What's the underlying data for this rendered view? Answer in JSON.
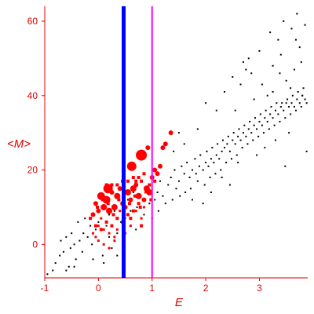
{
  "chart_data": {
    "type": "scatter",
    "title": "",
    "xlabel": "E",
    "ylabel": "<M>",
    "xlim": [
      -1,
      3.9
    ],
    "ylim": [
      -9,
      64
    ],
    "x_ticks": [
      -1,
      0,
      1,
      2,
      3
    ],
    "y_ticks": [
      0,
      20,
      40,
      60
    ],
    "grid": false,
    "legend": "none",
    "colors": {
      "axis": "#e00000",
      "black_points": "#000000",
      "red_points": "#ff0000",
      "blue_line": "#0000ff",
      "magenta_line": "#ff00ff"
    },
    "vertical_lines": [
      {
        "x": 0.47,
        "color": "#0000ff"
      },
      {
        "x": 1.0,
        "color": "#ff00ff"
      }
    ],
    "series": [
      {
        "color": "#000000",
        "points": [
          [
            -0.95,
            -8
          ],
          [
            -0.85,
            -7
          ],
          [
            -0.8,
            -5
          ],
          [
            -0.72,
            -3
          ],
          [
            -0.65,
            -2
          ],
          [
            -0.6,
            -7
          ],
          [
            -0.55,
            -6
          ],
          [
            -0.52,
            -1
          ],
          [
            -0.45,
            0
          ],
          [
            -0.42,
            -4
          ],
          [
            -0.35,
            1
          ],
          [
            -0.3,
            -2
          ],
          [
            -0.28,
            3
          ],
          [
            -0.2,
            2
          ],
          [
            -0.15,
            5
          ],
          [
            -0.12,
            0
          ],
          [
            -0.05,
            4
          ],
          [
            0.0,
            6
          ],
          [
            0.05,
            7
          ],
          [
            0.08,
            -3
          ],
          [
            0.15,
            5
          ],
          [
            0.2,
            8
          ],
          [
            0.25,
            -1
          ],
          [
            0.3,
            9
          ],
          [
            0.35,
            3
          ],
          [
            0.42,
            6
          ],
          [
            -0.6,
            2
          ],
          [
            -0.5,
            3
          ],
          [
            -0.38,
            6
          ],
          [
            -0.25,
            7
          ],
          [
            -0.1,
            -4
          ],
          [
            0.1,
            -5
          ],
          [
            0.2,
            2
          ],
          [
            0.35,
            -3
          ],
          [
            -0.7,
            1
          ],
          [
            -0.45,
            -6
          ],
          [
            0.5,
            7
          ],
          [
            0.55,
            12
          ],
          [
            0.6,
            9
          ],
          [
            0.65,
            14
          ],
          [
            0.7,
            4
          ],
          [
            0.72,
            10
          ],
          [
            0.78,
            13
          ],
          [
            0.85,
            8
          ],
          [
            0.9,
            15
          ],
          [
            0.95,
            11
          ],
          [
            1.0,
            7
          ],
          [
            1.05,
            12
          ],
          [
            1.1,
            14
          ],
          [
            1.12,
            9
          ],
          [
            1.15,
            17
          ],
          [
            1.2,
            13
          ],
          [
            1.25,
            11
          ],
          [
            1.3,
            16
          ],
          [
            1.35,
            18
          ],
          [
            1.38,
            12
          ],
          [
            1.42,
            20
          ],
          [
            1.45,
            15
          ],
          [
            1.5,
            17
          ],
          [
            1.52,
            13
          ],
          [
            1.55,
            21
          ],
          [
            1.6,
            19
          ],
          [
            1.62,
            14
          ],
          [
            1.65,
            22
          ],
          [
            1.7,
            18
          ],
          [
            1.72,
            15
          ],
          [
            1.75,
            20
          ],
          [
            1.8,
            23
          ],
          [
            1.82,
            19
          ],
          [
            1.85,
            17
          ],
          [
            1.88,
            21
          ],
          [
            1.9,
            24
          ],
          [
            1.95,
            20
          ],
          [
            1.98,
            16
          ],
          [
            2.0,
            22
          ],
          [
            2.02,
            25
          ],
          [
            2.05,
            21
          ],
          [
            2.08,
            18
          ],
          [
            2.1,
            23
          ],
          [
            2.12,
            26
          ],
          [
            2.15,
            22
          ],
          [
            2.18,
            19
          ],
          [
            2.2,
            24
          ],
          [
            2.22,
            27
          ],
          [
            2.25,
            23
          ],
          [
            2.28,
            20
          ],
          [
            2.3,
            25
          ],
          [
            2.32,
            28
          ],
          [
            2.35,
            26
          ],
          [
            2.38,
            22
          ],
          [
            2.4,
            27
          ],
          [
            2.42,
            29
          ],
          [
            2.45,
            25
          ],
          [
            2.48,
            23
          ],
          [
            2.5,
            28
          ],
          [
            2.52,
            30
          ],
          [
            2.55,
            27
          ],
          [
            2.58,
            24
          ],
          [
            2.6,
            29
          ],
          [
            2.62,
            31
          ],
          [
            2.65,
            28
          ],
          [
            2.68,
            26
          ],
          [
            2.7,
            30
          ],
          [
            2.72,
            32
          ],
          [
            2.75,
            29
          ],
          [
            2.78,
            27
          ],
          [
            2.8,
            31
          ],
          [
            2.82,
            33
          ],
          [
            2.85,
            30
          ],
          [
            2.88,
            28
          ],
          [
            2.9,
            32
          ],
          [
            2.92,
            34
          ],
          [
            2.95,
            31
          ],
          [
            2.98,
            29
          ],
          [
            3.0,
            33
          ],
          [
            3.02,
            35
          ],
          [
            3.05,
            32
          ],
          [
            3.08,
            30
          ],
          [
            3.1,
            34
          ],
          [
            3.12,
            36
          ],
          [
            3.15,
            33
          ],
          [
            3.18,
            31
          ],
          [
            3.2,
            35
          ],
          [
            3.22,
            37
          ],
          [
            3.25,
            34
          ],
          [
            3.28,
            32
          ],
          [
            3.3,
            36
          ],
          [
            3.32,
            38
          ],
          [
            3.35,
            35
          ],
          [
            3.38,
            33
          ],
          [
            3.4,
            37
          ],
          [
            3.42,
            38
          ],
          [
            3.45,
            36
          ],
          [
            3.48,
            34
          ],
          [
            3.5,
            38
          ],
          [
            3.52,
            39
          ],
          [
            3.55,
            37
          ],
          [
            3.58,
            35
          ],
          [
            3.6,
            38
          ],
          [
            3.62,
            40
          ],
          [
            3.65,
            37
          ],
          [
            3.68,
            36
          ],
          [
            3.7,
            39
          ],
          [
            3.72,
            41
          ],
          [
            3.75,
            38
          ],
          [
            3.78,
            37
          ],
          [
            3.8,
            40
          ],
          [
            3.82,
            42
          ],
          [
            3.85,
            39
          ],
          [
            3.88,
            38
          ],
          [
            1.4,
            25
          ],
          [
            1.6,
            27
          ],
          [
            1.75,
            12
          ],
          [
            1.95,
            11
          ],
          [
            2.1,
            14
          ],
          [
            2.3,
            18
          ],
          [
            2.45,
            16
          ],
          [
            2.5,
            45
          ],
          [
            2.6,
            22
          ],
          [
            2.7,
            49
          ],
          [
            2.8,
            50
          ],
          [
            2.85,
            46
          ],
          [
            2.95,
            24
          ],
          [
            3.0,
            52
          ],
          [
            3.05,
            43
          ],
          [
            3.1,
            26
          ],
          [
            3.2,
            57
          ],
          [
            3.25,
            41
          ],
          [
            3.3,
            28
          ],
          [
            3.35,
            55
          ],
          [
            3.4,
            51
          ],
          [
            3.45,
            60
          ],
          [
            3.5,
            44
          ],
          [
            3.55,
            30
          ],
          [
            3.6,
            58
          ],
          [
            3.65,
            47
          ],
          [
            3.7,
            62
          ],
          [
            3.75,
            53
          ],
          [
            3.8,
            40
          ],
          [
            3.85,
            59
          ],
          [
            3.88,
            25
          ],
          [
            3.78,
            49
          ],
          [
            3.68,
            55
          ],
          [
            3.58,
            42
          ],
          [
            3.48,
            21
          ],
          [
            3.38,
            46
          ],
          [
            2.9,
            39
          ],
          [
            2.65,
            43
          ],
          [
            2.55,
            36
          ],
          [
            2.35,
            41
          ],
          [
            2.2,
            36
          ],
          [
            2.0,
            38
          ],
          [
            1.85,
            31
          ],
          [
            1.5,
            30
          ],
          [
            2.75,
            47
          ],
          [
            3.15,
            40
          ],
          [
            3.25,
            48
          ]
        ]
      },
      {
        "color": "#ff0000",
        "points": [
          [
            0.8,
            24
          ],
          [
            0.62,
            21
          ],
          [
            0.18,
            15
          ],
          [
            0.15,
            12
          ],
          [
            0.05,
            13
          ],
          [
            0.3,
            10
          ],
          [
            0.35,
            13
          ],
          [
            0.2,
            9
          ],
          [
            0.1,
            10
          ],
          [
            0.55,
            14
          ],
          [
            0.65,
            15
          ],
          [
            0.75,
            13
          ],
          [
            0.9,
            15
          ],
          [
            0.95,
            14
          ],
          [
            -0.05,
            11
          ],
          [
            -0.1,
            8
          ],
          [
            0.0,
            9
          ],
          [
            0.25,
            14
          ],
          [
            0.4,
            15
          ],
          [
            0.45,
            11
          ],
          [
            0.5,
            10
          ],
          [
            0.6,
            12
          ],
          [
            0.7,
            16
          ],
          [
            0.85,
            12
          ],
          [
            1.0,
            18
          ],
          [
            1.05,
            20
          ],
          [
            1.1,
            19
          ],
          [
            1.15,
            21
          ],
          [
            1.2,
            26
          ],
          [
            1.25,
            27
          ],
          [
            1.35,
            30
          ],
          [
            0.92,
            26
          ],
          [
            0.7,
            17
          ],
          [
            0.8,
            17
          ],
          [
            0.75,
            11
          ],
          [
            0.65,
            9
          ],
          [
            0.55,
            8
          ],
          [
            0.45,
            6
          ],
          [
            0.35,
            7
          ],
          [
            0.25,
            5
          ],
          [
            0.15,
            6
          ],
          [
            0.05,
            4
          ],
          [
            -0.05,
            5
          ],
          [
            -0.15,
            7
          ],
          [
            -0.1,
            3
          ],
          [
            0.0,
            1
          ],
          [
            0.1,
            0
          ],
          [
            0.2,
            -1
          ],
          [
            0.3,
            1
          ],
          [
            0.35,
            4
          ],
          [
            0.4,
            9
          ],
          [
            0.3,
            2
          ],
          [
            0.2,
            3
          ],
          [
            0.1,
            4
          ],
          [
            0.0,
            5
          ],
          [
            0.05,
            7
          ],
          [
            -0.05,
            2
          ],
          [
            0.5,
            3
          ],
          [
            0.6,
            5
          ],
          [
            0.7,
            9
          ],
          [
            0.8,
            7
          ],
          [
            0.85,
            10
          ],
          [
            0.88,
            14
          ],
          [
            0.78,
            10
          ],
          [
            0.68,
            13
          ],
          [
            0.58,
            11
          ],
          [
            0.48,
            14
          ],
          [
            0.38,
            12
          ],
          [
            0.28,
            8
          ],
          [
            0.18,
            11
          ],
          [
            0.08,
            12
          ],
          [
            -0.02,
            10
          ],
          [
            0.15,
            16
          ],
          [
            0.25,
            16
          ],
          [
            0.35,
            16
          ],
          [
            0.45,
            17
          ],
          [
            0.55,
            17
          ],
          [
            0.65,
            18
          ],
          [
            0.75,
            18
          ],
          [
            0.85,
            19
          ],
          [
            0.95,
            16
          ],
          [
            1.05,
            17
          ],
          [
            0.98,
            12
          ],
          [
            0.6,
            7
          ],
          [
            0.8,
            5
          ]
        ],
        "sizes": [
          7,
          6,
          6,
          5,
          5,
          4,
          4,
          4,
          4,
          4,
          4,
          4,
          4,
          4,
          3,
          3,
          3,
          3,
          3,
          3,
          3,
          3,
          3,
          3,
          3,
          3,
          3,
          3,
          3,
          3,
          3,
          3,
          2,
          2,
          2,
          2,
          2,
          2,
          2,
          2,
          2,
          2,
          2,
          2,
          1.5,
          1.5,
          1.5,
          1.5,
          1.5,
          1.5,
          1.5,
          1.5,
          1.5,
          1.5,
          1.5,
          1.5,
          1.5,
          1.5,
          1.5,
          1.5,
          1.5,
          1.5,
          1.5,
          2,
          2,
          2,
          2,
          2,
          2,
          2,
          2,
          2,
          2,
          2,
          2,
          2,
          2,
          2,
          2,
          2,
          2,
          2,
          2,
          2,
          2
        ]
      }
    ]
  }
}
